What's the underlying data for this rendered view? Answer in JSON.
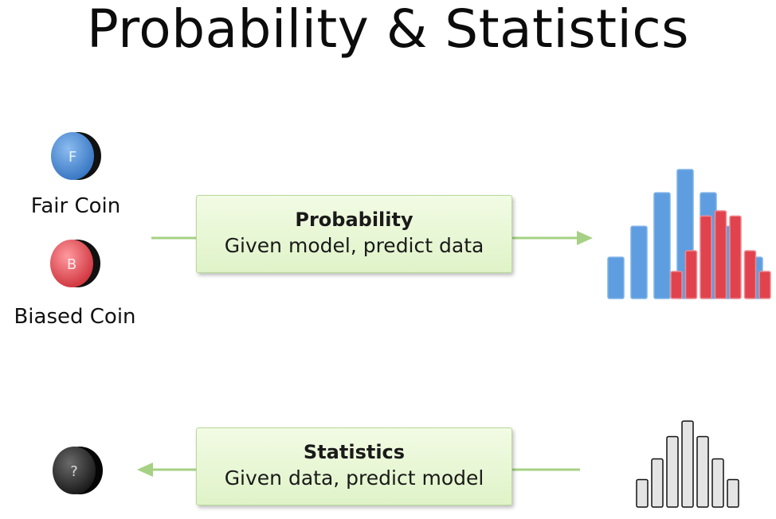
{
  "title": "Probability & Statistics",
  "coins": {
    "fair": {
      "label": "Fair Coin",
      "letter": "F",
      "color": "#4f8fd6"
    },
    "biased": {
      "label": "Biased Coin",
      "letter": "B",
      "color": "#e0505a"
    },
    "unknown": {
      "letter": "?",
      "color": "#3a3a3a"
    }
  },
  "probability_box": {
    "heading": "Probability",
    "text": "Given model, predict data"
  },
  "statistics_box": {
    "heading": "Statistics",
    "text": "Given data, predict model"
  },
  "colors": {
    "arrow": "#a6d184",
    "blue_bar": "#5e9ee0",
    "red_bar": "#e0434d",
    "gray_bar": "#e4e4e4"
  },
  "histograms": {
    "blue": [
      0.32,
      0.56,
      0.82,
      1.0,
      0.82,
      0.56,
      0.32
    ],
    "red": [
      0.21,
      0.37,
      0.64,
      0.68,
      0.64,
      0.37,
      0.21
    ],
    "gray": [
      0.32,
      0.56,
      0.82,
      1.0,
      0.82,
      0.56,
      0.32
    ]
  }
}
